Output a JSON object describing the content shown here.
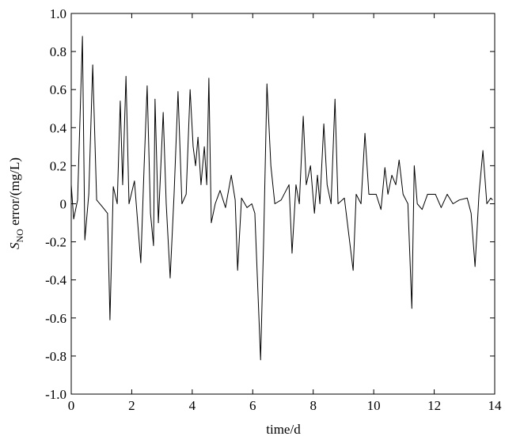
{
  "chart_data": {
    "type": "line",
    "ylabel": {
      "symbol": "S",
      "subscript": "NO",
      "text": " error/(mg/L)"
    },
    "xlabel": "time/d",
    "xlim": [
      0,
      14
    ],
    "xticks": [
      0,
      2,
      4,
      6,
      8,
      10,
      12,
      14
    ],
    "ylim": [
      -1,
      1
    ],
    "yticks": [
      {
        "value": -1,
        "label": "-1.0"
      },
      -0.8,
      -0.6,
      -0.4,
      -0.2,
      0,
      0.2,
      0.4,
      0.6,
      0.8,
      {
        "value": 1,
        "label": "1.0"
      }
    ],
    "color": "#000000",
    "x": [
      0.0,
      0.08,
      0.21,
      0.37,
      0.45,
      0.58,
      0.71,
      0.84,
      1.05,
      1.2,
      1.28,
      1.39,
      1.52,
      1.62,
      1.7,
      1.81,
      1.91,
      2.09,
      2.3,
      2.41,
      2.51,
      2.62,
      2.72,
      2.77,
      2.88,
      3.04,
      3.14,
      3.27,
      3.4,
      3.53,
      3.66,
      3.8,
      3.93,
      4.03,
      4.11,
      4.19,
      4.29,
      4.4,
      4.48,
      4.55,
      4.63,
      4.76,
      4.92,
      5.1,
      5.29,
      5.42,
      5.5,
      5.63,
      5.81,
      5.97,
      6.07,
      6.26,
      6.36,
      6.47,
      6.6,
      6.73,
      6.94,
      7.2,
      7.3,
      7.43,
      7.54,
      7.67,
      7.77,
      7.91,
      8.04,
      8.14,
      8.22,
      8.35,
      8.46,
      8.59,
      8.72,
      8.82,
      9.03,
      9.32,
      9.42,
      9.58,
      9.71,
      9.84,
      10.08,
      10.24,
      10.37,
      10.47,
      10.6,
      10.73,
      10.84,
      10.97,
      11.13,
      11.26,
      11.34,
      11.44,
      11.6,
      11.78,
      12.04,
      12.23,
      12.43,
      12.62,
      12.83,
      13.09,
      13.22,
      13.35,
      13.48,
      13.61,
      13.74,
      13.87,
      13.93
    ],
    "values": [
      0.1,
      -0.08,
      0.02,
      0.88,
      -0.19,
      0.05,
      0.73,
      0.02,
      -0.02,
      -0.05,
      -0.61,
      0.09,
      0.0,
      0.54,
      0.1,
      0.67,
      0.0,
      0.12,
      -0.31,
      0.2,
      0.62,
      -0.05,
      -0.22,
      0.55,
      -0.1,
      0.48,
      0.0,
      -0.39,
      0.05,
      0.59,
      0.0,
      0.05,
      0.6,
      0.3,
      0.2,
      0.35,
      0.1,
      0.3,
      0.1,
      0.66,
      -0.1,
      0.0,
      0.07,
      -0.02,
      0.15,
      0.02,
      -0.35,
      0.03,
      -0.02,
      0.0,
      -0.05,
      -0.82,
      -0.2,
      0.63,
      0.2,
      0.0,
      0.02,
      0.1,
      -0.26,
      0.1,
      0.0,
      0.46,
      0.1,
      0.2,
      -0.05,
      0.15,
      0.0,
      0.42,
      0.1,
      0.0,
      0.55,
      0.0,
      0.03,
      -0.35,
      0.05,
      0.0,
      0.37,
      0.05,
      0.05,
      -0.03,
      0.19,
      0.05,
      0.15,
      0.1,
      0.23,
      0.05,
      0.0,
      -0.55,
      0.2,
      0.0,
      -0.03,
      0.05,
      0.05,
      -0.02,
      0.05,
      0.0,
      0.02,
      0.03,
      -0.05,
      -0.33,
      0.05,
      0.28,
      0.0,
      0.03,
      0.02
    ]
  }
}
